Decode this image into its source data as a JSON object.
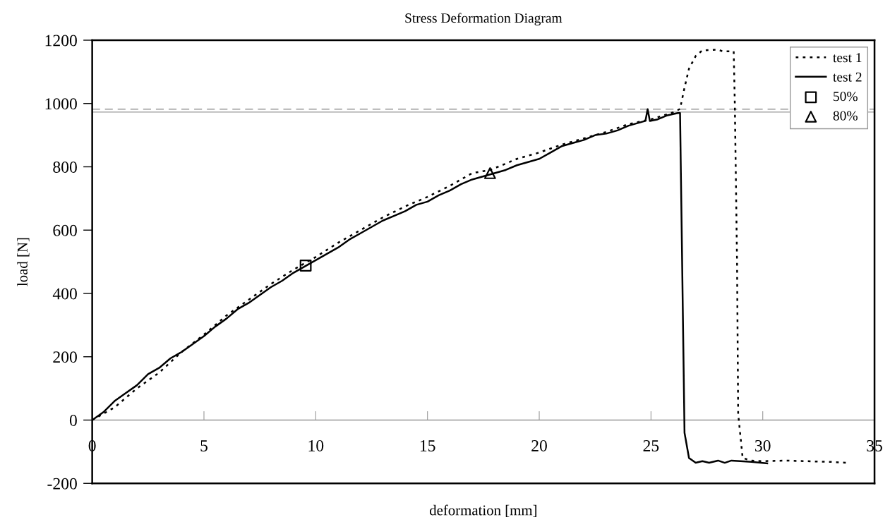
{
  "chart_data": {
    "type": "line",
    "title": "Stress Deformation Diagram",
    "xlabel": "deformation [mm]",
    "ylabel": "load [N]",
    "xlim": [
      0,
      35
    ],
    "xticks": [
      0,
      5,
      10,
      15,
      20,
      25,
      30,
      35
    ],
    "ylim": [
      -200,
      1200
    ],
    "yticks": [
      -200,
      0,
      200,
      400,
      600,
      800,
      1000,
      1200
    ],
    "grid": false,
    "legend": "top right",
    "ref_lines": [
      {
        "axis": "y",
        "value": 982,
        "color": "#999999",
        "line_style": "dashed"
      },
      {
        "axis": "y",
        "value": 973,
        "color": "#999999",
        "line_style": "solid"
      },
      {
        "axis": "y",
        "value": 0,
        "color": "#999999",
        "line_style": "solid"
      }
    ],
    "series": [
      {
        "name": "test 1",
        "color": "#000000",
        "line_style": "dotted",
        "marker": "none",
        "x": [
          0,
          1,
          2,
          3,
          4,
          5,
          6,
          7,
          8,
          9,
          10,
          11,
          12,
          13,
          14,
          15,
          16,
          17,
          17.8,
          18.5,
          19,
          20,
          21,
          22,
          23,
          24,
          25,
          26,
          26.3,
          26.5,
          26.7,
          27,
          27.3,
          28,
          28.2,
          28.7,
          28.75,
          28.85,
          28.9,
          29.1,
          29.5,
          30,
          31,
          32,
          33,
          33.8
        ],
        "values": [
          0,
          40,
          100,
          150,
          215,
          270,
          330,
          380,
          430,
          475,
          515,
          560,
          600,
          640,
          675,
          705,
          740,
          780,
          790,
          810,
          825,
          845,
          870,
          890,
          910,
          935,
          950,
          972,
          983,
          1050,
          1110,
          1150,
          1168,
          1170,
          1165,
          1165,
          1000,
          500,
          20,
          -120,
          -128,
          -130,
          -128,
          -130,
          -132,
          -135
        ]
      },
      {
        "name": "test 2",
        "color": "#000000",
        "line_style": "solid",
        "marker": "none",
        "x": [
          0,
          0.5,
          1,
          1.5,
          2,
          2.5,
          3,
          3.5,
          4,
          4.5,
          5,
          5.5,
          6,
          6.5,
          7,
          7.5,
          8,
          8.5,
          9,
          9.5,
          10,
          10.5,
          11,
          11.5,
          12,
          12.5,
          13,
          13.5,
          14,
          14.5,
          15,
          15.5,
          16,
          16.5,
          17,
          17.5,
          18,
          18.5,
          19,
          19.5,
          20,
          20.5,
          21,
          21.5,
          22,
          22.5,
          23,
          23.5,
          24,
          24.5,
          24.75,
          24.85,
          24.95,
          25.3,
          25.7,
          26.2,
          26.3,
          26.5,
          26.7,
          27,
          27.3,
          27.6,
          28,
          28.3,
          28.6,
          29,
          29.5,
          30.2
        ],
        "values": [
          0,
          25,
          60,
          85,
          110,
          145,
          165,
          195,
          215,
          240,
          265,
          295,
          320,
          350,
          370,
          395,
          420,
          440,
          465,
          485,
          505,
          525,
          545,
          570,
          590,
          610,
          630,
          645,
          660,
          680,
          690,
          710,
          725,
          745,
          760,
          770,
          780,
          790,
          805,
          815,
          825,
          845,
          865,
          875,
          885,
          900,
          905,
          915,
          930,
          940,
          945,
          982,
          945,
          950,
          962,
          970,
          970,
          -40,
          -120,
          -135,
          -130,
          -135,
          -128,
          -135,
          -128,
          -130,
          -132,
          -137
        ]
      },
      {
        "name": "50%",
        "type": "scatter",
        "color": "#000000",
        "marker": "square",
        "x": [
          9.55
        ],
        "values": [
          488
        ]
      },
      {
        "name": "80%",
        "type": "scatter",
        "color": "#000000",
        "marker": "triangle",
        "x": [
          17.8
        ],
        "values": [
          780
        ]
      }
    ]
  }
}
